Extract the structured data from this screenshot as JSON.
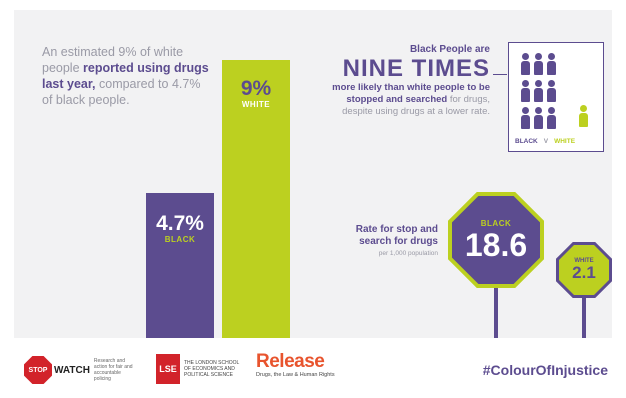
{
  "intro": {
    "t1": "An estimated 9% of white people ",
    "t2": "reported using drugs last year,",
    "t3": " compared to 4.7% of black people."
  },
  "chart_data": [
    {
      "type": "bar",
      "categories": [
        "BLACK",
        "WHITE"
      ],
      "values": [
        4.7,
        9
      ],
      "value_labels": [
        "4.7%",
        "9%"
      ],
      "colors": [
        "#5c4c8f",
        "#bcd020"
      ]
    },
    {
      "type": "bar",
      "title": "Rate for stop and search for drugs",
      "subtitle": "per 1,000 population",
      "categories": [
        "BLACK",
        "WHITE"
      ],
      "values": [
        18.6,
        2.1
      ],
      "colors": [
        "#5c4c8f",
        "#bcd020"
      ]
    }
  ],
  "nine": {
    "top": "Black People are",
    "big": "NINE TIMES",
    "b1": "more likely than white people to be stopped and searched",
    "b2": " for drugs, despite using drugs at a lower rate."
  },
  "people_box": {
    "black_count": 9,
    "white_count": 1,
    "black_label": "BLACK",
    "vs_label": "V",
    "white_label": "WHITE"
  },
  "footer": {
    "stop_text": "STOP",
    "watch_text": "WATCH",
    "stop_tagline": "Research and action for fair and accountable policing",
    "lse_text": "LSE",
    "lse_name": "THE LONDON SCHOOL OF ECONOMICS AND POLITICAL SCIENCE",
    "release_name": "Release",
    "release_tagline": "Drugs, the Law & Human Rights",
    "hashtag": "#ColourOfInjustice"
  },
  "colors": {
    "purple": "#5c4c8f",
    "lime": "#bcd020",
    "grey_text": "#9a9aa6",
    "background": "#f2f2f3"
  }
}
